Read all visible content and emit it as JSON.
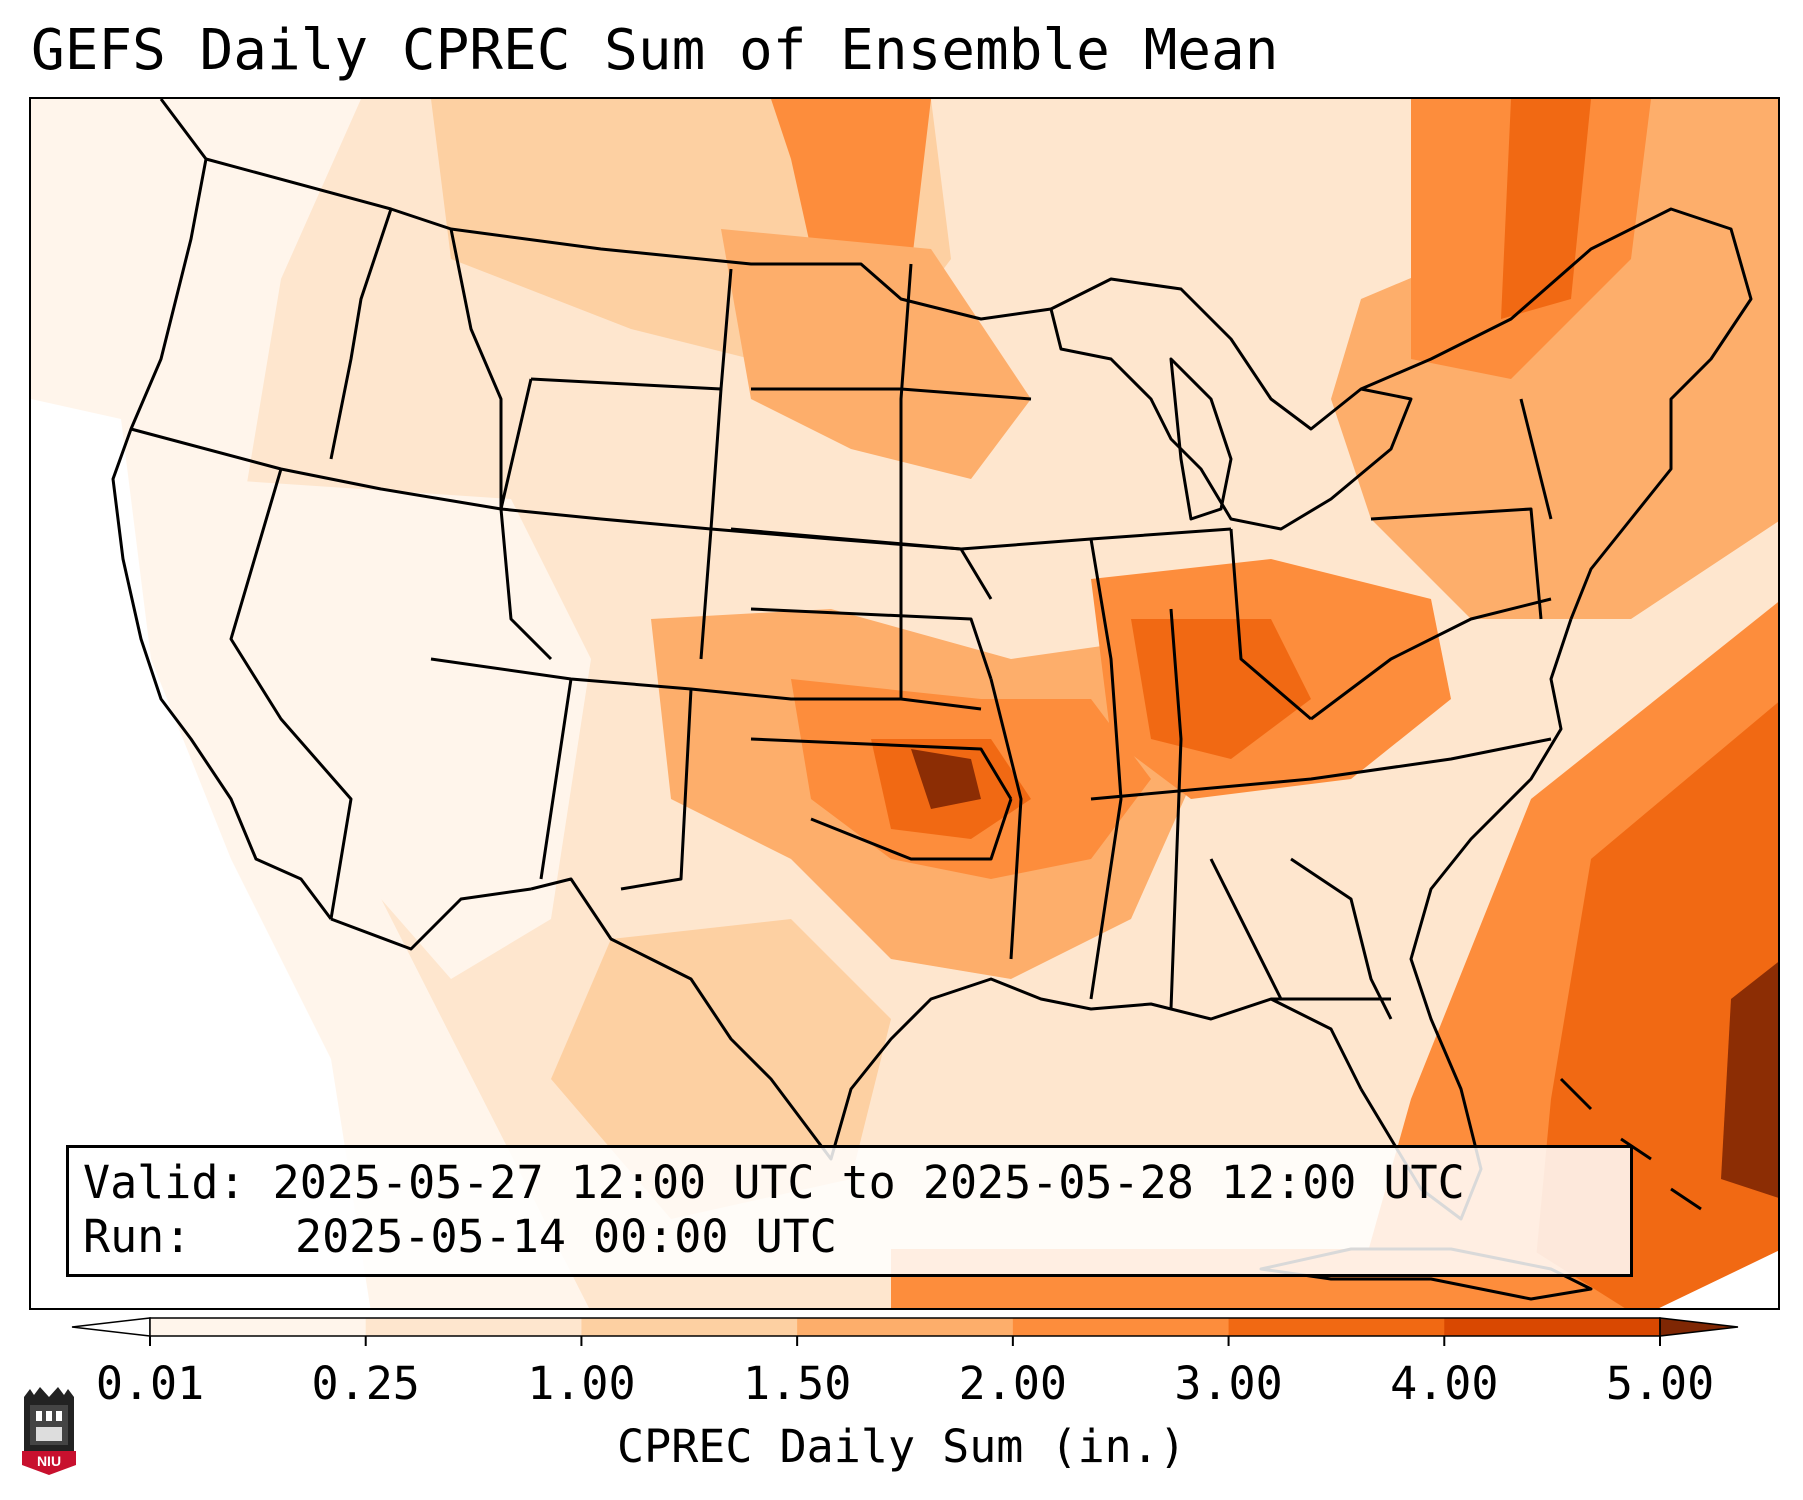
{
  "title": "GEFS Daily CPREC Sum of Ensemble Mean",
  "info": {
    "valid_label": "Valid:",
    "valid_value": "2025-05-27 12:00 UTC to 2025-05-28 12:00 UTC",
    "run_label": "Run:",
    "run_value": "2025-05-14 00:00 UTC"
  },
  "colorbar": {
    "label": "CPREC Daily Sum (in.)",
    "ticks": [
      "0.01",
      "0.25",
      "1.00",
      "1.50",
      "2.00",
      "3.00",
      "4.00",
      "5.00"
    ],
    "colors": [
      "#fff5eb",
      "#fee6ce",
      "#fdd0a2",
      "#fdae6b",
      "#fd8d3c",
      "#f16913",
      "#d94801",
      "#8c2d04"
    ],
    "under_color": "#ffffff",
    "over_color": "#7f2704",
    "extend": "both"
  },
  "map": {
    "projection": "Lambert Conformal",
    "region": "Contiguous United States"
  },
  "logo": {
    "icon": "niu-logo-icon",
    "text": "NIU"
  }
}
